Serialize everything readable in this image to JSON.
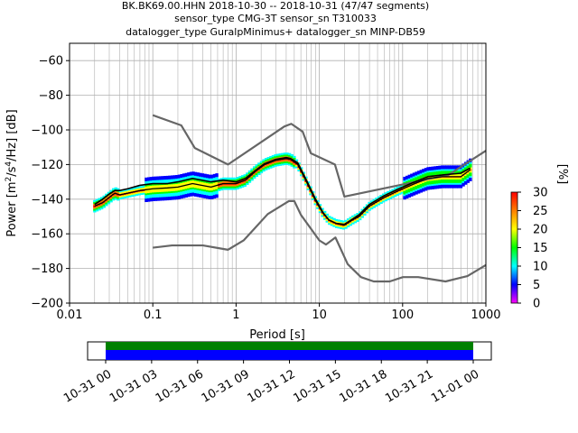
{
  "header": {
    "line1": "BK.BK69.00.HHN   2018-10-30 -- 2018-10-31  (47/47 segments)",
    "line2": "sensor_type CMG-3T sensor_sn T310033",
    "line3": "datalogger_type GuralpMinimus+ datalogger_sn MINP-DB59"
  },
  "chart_data": [
    {
      "type": "heatmap",
      "subtype": "probabilistic-power-spectral-density",
      "xlabel": "Period [s]",
      "ylabel": "Power [m²/s⁴/Hz] [dB]",
      "xscale": "log",
      "xlim": [
        0.01,
        1000
      ],
      "ylim": [
        -200,
        -50
      ],
      "x_ticks": [
        0.01,
        0.1,
        1,
        10,
        100,
        1000
      ],
      "x_tick_labels": [
        "0.01",
        "0.1",
        "1",
        "10",
        "100",
        "1000"
      ],
      "y_ticks": [
        -200,
        -180,
        -160,
        -140,
        -120,
        -100,
        -80,
        -60
      ],
      "y_tick_labels": [
        "−200",
        "−180",
        "−160",
        "−140",
        "−120",
        "−100",
        "−80",
        "−60"
      ],
      "grid": true,
      "colorbar": {
        "label": "[%]",
        "range": [
          0,
          30
        ],
        "ticks": [
          0,
          5,
          10,
          15,
          20,
          25,
          30
        ],
        "tick_labels": [
          "0",
          "5",
          "10",
          "15",
          "20",
          "25",
          "30"
        ],
        "colormap": [
          "#ff00ff",
          "#0000ff",
          "#00ffff",
          "#00ff00",
          "#ffff00",
          "#ff8000",
          "#ff0000"
        ]
      },
      "series": [
        {
          "role": "high-noise-model",
          "color": "#666666",
          "x": [
            0.1,
            0.22,
            0.32,
            0.8,
            3.8,
            4.6,
            6.3,
            7.9,
            15.4,
            20,
            354.8,
            1000
          ],
          "y": [
            -91.5,
            -97.4,
            -110.5,
            -120,
            -98,
            -96.5,
            -101,
            -113.5,
            -120,
            -138.5,
            -126,
            -112
          ]
        },
        {
          "role": "low-noise-model",
          "color": "#666666",
          "x": [
            0.1,
            0.17,
            0.4,
            0.8,
            1.24,
            2.4,
            4.3,
            5.0,
            6.0,
            10,
            12,
            15.6,
            21.9,
            31.6,
            45,
            70,
            101,
            154,
            328,
            600,
            1000
          ],
          "y": [
            -168,
            -166.7,
            -166.7,
            -169.2,
            -163.7,
            -148.6,
            -141.1,
            -141.1,
            -149,
            -163.8,
            -166.2,
            -162.1,
            -177.5,
            -185,
            -187.5,
            -187.5,
            -185,
            -185,
            -187.5,
            -184.4,
            -178
          ]
        },
        {
          "role": "mode",
          "color": "#000000",
          "x": [
            0.02,
            0.025,
            0.03,
            0.035,
            0.04,
            0.05,
            0.07,
            0.1,
            0.15,
            0.2,
            0.3,
            0.5,
            0.7,
            1.0,
            1.3,
            1.7,
            2.2,
            3.0,
            4.0,
            4.5,
            5.5,
            7.0,
            9.0,
            11,
            13,
            16,
            20,
            25,
            30,
            40,
            60,
            90,
            140,
            200,
            300,
            500,
            650
          ],
          "y": [
            -144,
            -142,
            -139,
            -136.5,
            -137.5,
            -136.5,
            -135,
            -134,
            -133.5,
            -133,
            -131,
            -133,
            -131,
            -131,
            -129,
            -124,
            -120,
            -117.5,
            -116.5,
            -117,
            -120,
            -130,
            -141,
            -148,
            -152,
            -154,
            -155,
            -152,
            -150,
            -144,
            -139,
            -135,
            -131,
            -128,
            -127,
            -127,
            -123
          ]
        },
        {
          "role": "mean",
          "color": "#000000",
          "x": [
            0.02,
            0.025,
            0.03,
            0.035,
            0.04,
            0.05,
            0.07,
            0.1,
            0.15,
            0.2,
            0.3,
            0.5,
            0.7,
            1.0,
            1.3,
            1.7,
            2.2,
            3.0,
            4.0,
            4.5,
            5.5,
            7.0,
            9.0,
            11,
            13,
            16,
            20,
            25,
            30,
            40,
            60,
            90,
            140,
            200,
            300,
            500,
            650
          ],
          "y": [
            -143,
            -140,
            -137,
            -135,
            -135,
            -134,
            -132,
            -131,
            -131,
            -130,
            -128,
            -130,
            -129,
            -130,
            -128,
            -123.5,
            -119.5,
            -117,
            -116,
            -116.5,
            -119,
            -129,
            -140,
            -147.5,
            -152,
            -154,
            -154.5,
            -151.5,
            -149,
            -143,
            -138,
            -134,
            -130,
            -127,
            -126,
            -125,
            -122
          ]
        }
      ]
    },
    {
      "type": "timeline",
      "x_tick_labels": [
        "10-31 00",
        "10-31 03",
        "10-31 06",
        "10-31 09",
        "10-31 12",
        "10-31 15",
        "10-31 18",
        "10-31 21",
        "11-01 00"
      ],
      "bars": [
        {
          "role": "segments",
          "color": "#008000"
        },
        {
          "role": "coverage",
          "color": "#0000ff"
        }
      ]
    }
  ]
}
